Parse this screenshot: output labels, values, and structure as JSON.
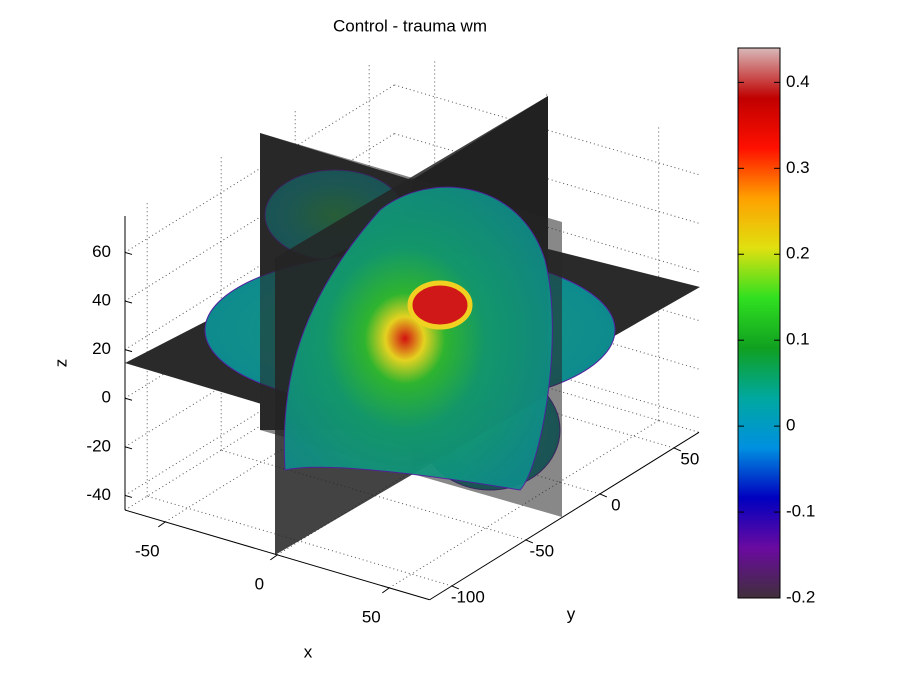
{
  "chart_data": {
    "type": "slice",
    "title": "Control - trauma wm",
    "xlabel": "x",
    "ylabel": "y",
    "zlabel": "z",
    "xlim": [
      -68,
      68
    ],
    "ylim": [
      -115,
      67
    ],
    "zlim": [
      -46,
      75
    ],
    "xticks": [
      -50,
      0,
      50
    ],
    "yticks": [
      -100,
      -50,
      0,
      50
    ],
    "zticks": [
      -40,
      -20,
      0,
      20,
      40,
      60
    ],
    "grid": true,
    "colorbar": {
      "clim": [
        -0.2,
        0.44
      ],
      "ticks": [
        -0.2,
        -0.1,
        0,
        0.1,
        0.2,
        0.3,
        0.4
      ],
      "colormap": "jet"
    }
  }
}
